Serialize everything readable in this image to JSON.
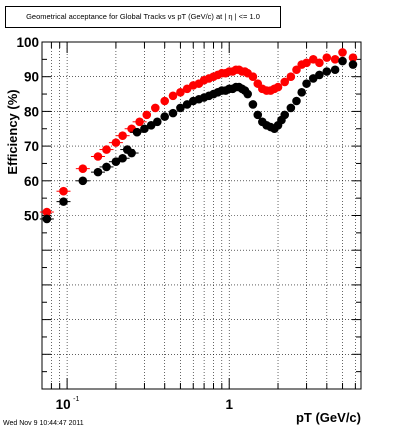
{
  "footer": {
    "timestamp": "Wed Nov  9 10:44:47 2011"
  },
  "chart_data": {
    "type": "scatter",
    "title": "Geometrical acceptance for Global Tracks vs pT (GeV/c) at | η | <= 1.0",
    "xlabel": "pT (GeV/c)",
    "ylabel": "Efficiency (%)",
    "x_scale": "log",
    "xlim": [
      0.07,
      6.5
    ],
    "ylim": [
      0,
      100
    ],
    "grid": true,
    "y_ticks": [
      50,
      60,
      70,
      80,
      90,
      100
    ],
    "x_tick_labels": [
      {
        "value": 0.1,
        "base": "10",
        "exp": "-1"
      },
      {
        "value": 1,
        "base": "1",
        "exp": ""
      }
    ],
    "series": [
      {
        "color": "#ff0000",
        "x": [
          0.075,
          0.095,
          0.125,
          0.155,
          0.175,
          0.2,
          0.22,
          0.25,
          0.28,
          0.31,
          0.35,
          0.4,
          0.45,
          0.5,
          0.55,
          0.6,
          0.65,
          0.7,
          0.75,
          0.8,
          0.85,
          0.9,
          0.95,
          1.0,
          1.05,
          1.1,
          1.15,
          1.2,
          1.25,
          1.3,
          1.4,
          1.5,
          1.6,
          1.7,
          1.8,
          1.9,
          2.0,
          2.2,
          2.4,
          2.6,
          2.8,
          3.0,
          3.3,
          3.6,
          4.0,
          4.5,
          5.0,
          5.8
        ],
        "y": [
          51,
          57,
          63.5,
          67,
          69,
          71,
          73,
          75,
          77,
          79,
          81,
          83,
          84.5,
          85.5,
          86.5,
          87.5,
          88,
          89,
          89.5,
          90,
          90.5,
          91,
          91,
          91.5,
          91.5,
          92,
          92,
          91.5,
          91.5,
          91,
          90,
          88,
          86.5,
          86,
          86,
          86.5,
          87,
          88.5,
          90,
          92,
          93.5,
          94,
          95,
          94,
          95.5,
          95,
          97,
          95.5
        ]
      },
      {
        "color": "#000000",
        "x": [
          0.075,
          0.095,
          0.125,
          0.155,
          0.175,
          0.2,
          0.22,
          0.235,
          0.25,
          0.27,
          0.3,
          0.33,
          0.36,
          0.4,
          0.45,
          0.5,
          0.55,
          0.6,
          0.65,
          0.7,
          0.75,
          0.8,
          0.85,
          0.9,
          0.95,
          1.0,
          1.05,
          1.1,
          1.15,
          1.2,
          1.25,
          1.3,
          1.4,
          1.5,
          1.6,
          1.7,
          1.8,
          1.9,
          2.0,
          2.1,
          2.2,
          2.4,
          2.6,
          2.8,
          3.0,
          3.3,
          3.6,
          4.0,
          4.5,
          5.0,
          5.8
        ],
        "y": [
          49,
          54,
          60,
          62.5,
          64,
          65.5,
          66.5,
          69,
          68,
          74,
          75,
          76,
          77,
          78.5,
          79.5,
          81,
          82,
          83,
          83.5,
          84,
          84.5,
          85,
          85.5,
          86,
          86,
          86.5,
          86.5,
          87,
          87,
          86.5,
          86,
          85,
          82,
          79,
          77,
          76,
          75.5,
          75,
          76,
          77.5,
          79,
          81,
          83,
          85.5,
          88,
          89.5,
          90.5,
          91.5,
          92,
          94.5,
          93.5
        ]
      }
    ]
  }
}
